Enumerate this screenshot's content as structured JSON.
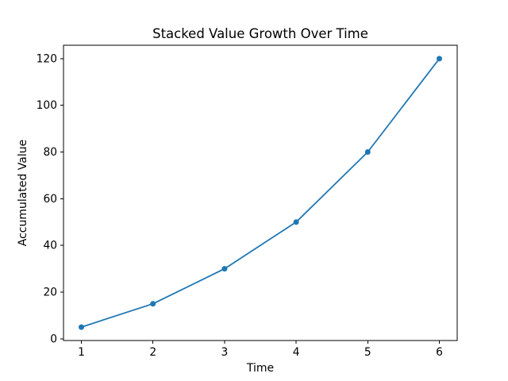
{
  "chart_data": {
    "type": "line",
    "title": "Stacked Value Growth Over Time",
    "xlabel": "Time",
    "ylabel": "Accumulated Value",
    "x": [
      1,
      2,
      3,
      4,
      5,
      6
    ],
    "series": [
      {
        "name": "accumulated-value",
        "values": [
          5,
          15,
          30,
          50,
          80,
          120
        ]
      }
    ],
    "xticks": [
      1,
      2,
      3,
      4,
      5,
      6
    ],
    "yticks": [
      0,
      20,
      40,
      60,
      80,
      100,
      120
    ],
    "xlim": [
      0.75,
      6.25
    ],
    "ylim": [
      -0.75,
      125.75
    ],
    "grid": false,
    "legend_position": "none",
    "marker": "circle",
    "colors": {
      "line": "#1f77b4",
      "marker": "#1f77b4",
      "axis": "#000000",
      "text": "#000000",
      "background": "#ffffff"
    }
  }
}
